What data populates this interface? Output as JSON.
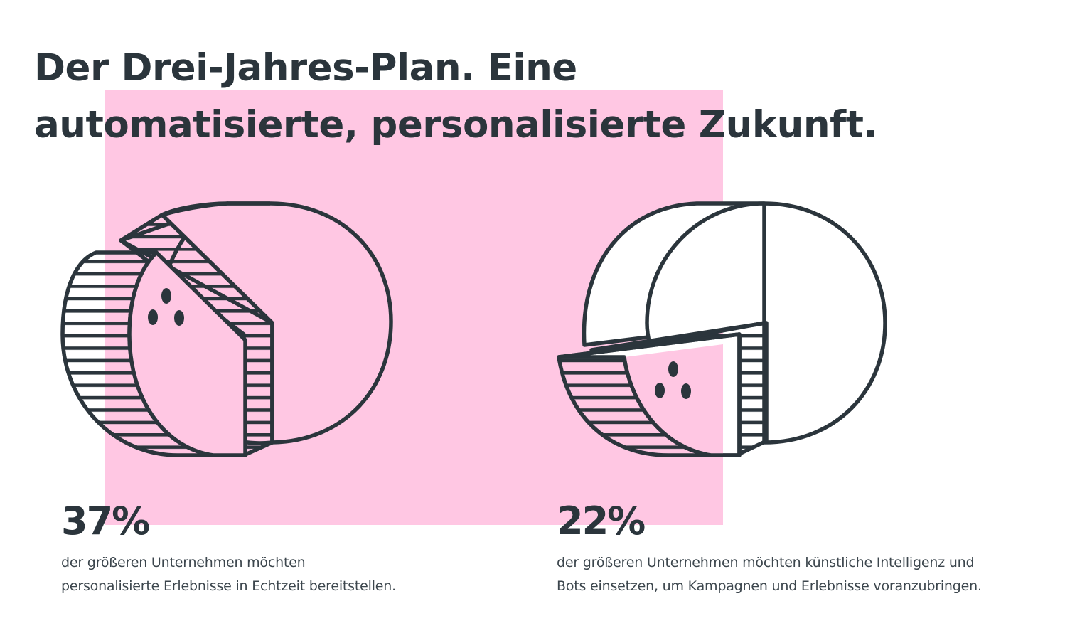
{
  "title": {
    "line1": "Der Drei-Jahres-Plan. Eine",
    "line2": "automatisierte, personalisierte Zukunft."
  },
  "colors": {
    "ink": "#2b353c",
    "accent_panel": "#ffc7e3",
    "background": "#ffffff"
  },
  "chart_data": [
    {
      "type": "pie",
      "slices": [
        {
          "label": "personalisierte Erlebnisse in Echtzeit",
          "value": 37
        },
        {
          "label": "",
          "value": 63
        }
      ],
      "value_label": "37%",
      "caption": [
        "der größeren Unternehmen möchten",
        "personalisierte Erlebnisse in Echtzeit bereitstellen."
      ]
    },
    {
      "type": "pie",
      "slices": [
        {
          "label": "künstliche Intelligenz und Bots",
          "value": 22
        },
        {
          "label": "",
          "value": 78
        }
      ],
      "value_label": "22%",
      "caption": [
        "der größeren Unternehmen möchten künstliche Intelligenz und",
        "Bots einsetzen, um Kampagnen und Erlebnisse voranzubringen."
      ]
    }
  ]
}
